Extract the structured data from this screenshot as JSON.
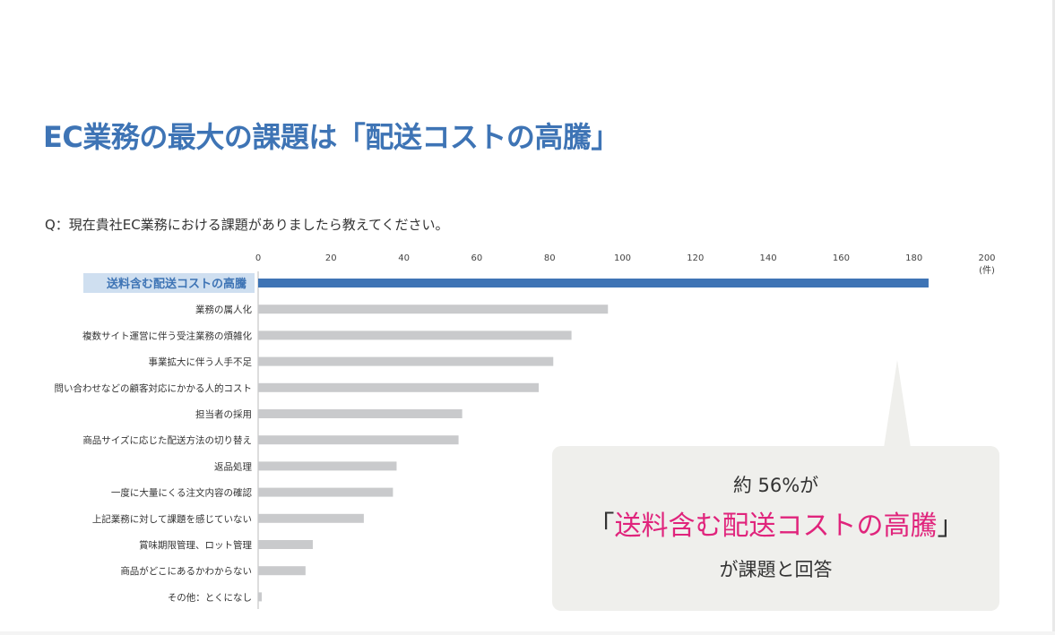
{
  "title": "EC業務の最大の課題は「配送コストの高騰」",
  "question": "Q：現在貴社EC業務における課題がありましたら教えてください。",
  "colors": {
    "title": "#3e74b5",
    "highlight_bar": "#3e74b5",
    "other_bars": "#c9cacc",
    "highlight_label_bg": "#cfdff0",
    "callout_bg": "#efefec",
    "callout_accent": "#e0247c"
  },
  "chart_data": {
    "type": "bar",
    "orientation": "horizontal",
    "unit": "(件)",
    "xlim": [
      0,
      200
    ],
    "ticks": [
      "0",
      "20",
      "40",
      "60",
      "80",
      "100",
      "120",
      "140",
      "160",
      "180",
      "200"
    ],
    "categories": [
      "送料含む配送コストの高騰",
      "業務の属人化",
      "複数サイト運営に伴う受注業務の煩雑化",
      "事業拡大に伴う人手不足",
      "問い合わせなどの顧客対応にかかる人的コスト",
      "担当者の採用",
      "商品サイズに応じた配送方法の切り替え",
      "返品処理",
      "一度に大量にくる注文内容の確認",
      "上記業務に対して課題を感じていない",
      "賞味期限管理、ロット管理",
      "商品がどこにあるかわからない",
      "その他：とくになし"
    ],
    "values": [
      184,
      96,
      86,
      81,
      77,
      56,
      55,
      38,
      37,
      29,
      15,
      13,
      1
    ],
    "highlight_index": 0
  },
  "callout": {
    "line1": "約 56%が",
    "open_quote": "「",
    "highlight": "送料含む配送コストの高騰",
    "close_quote": "」",
    "line3": "が課題と回答"
  }
}
